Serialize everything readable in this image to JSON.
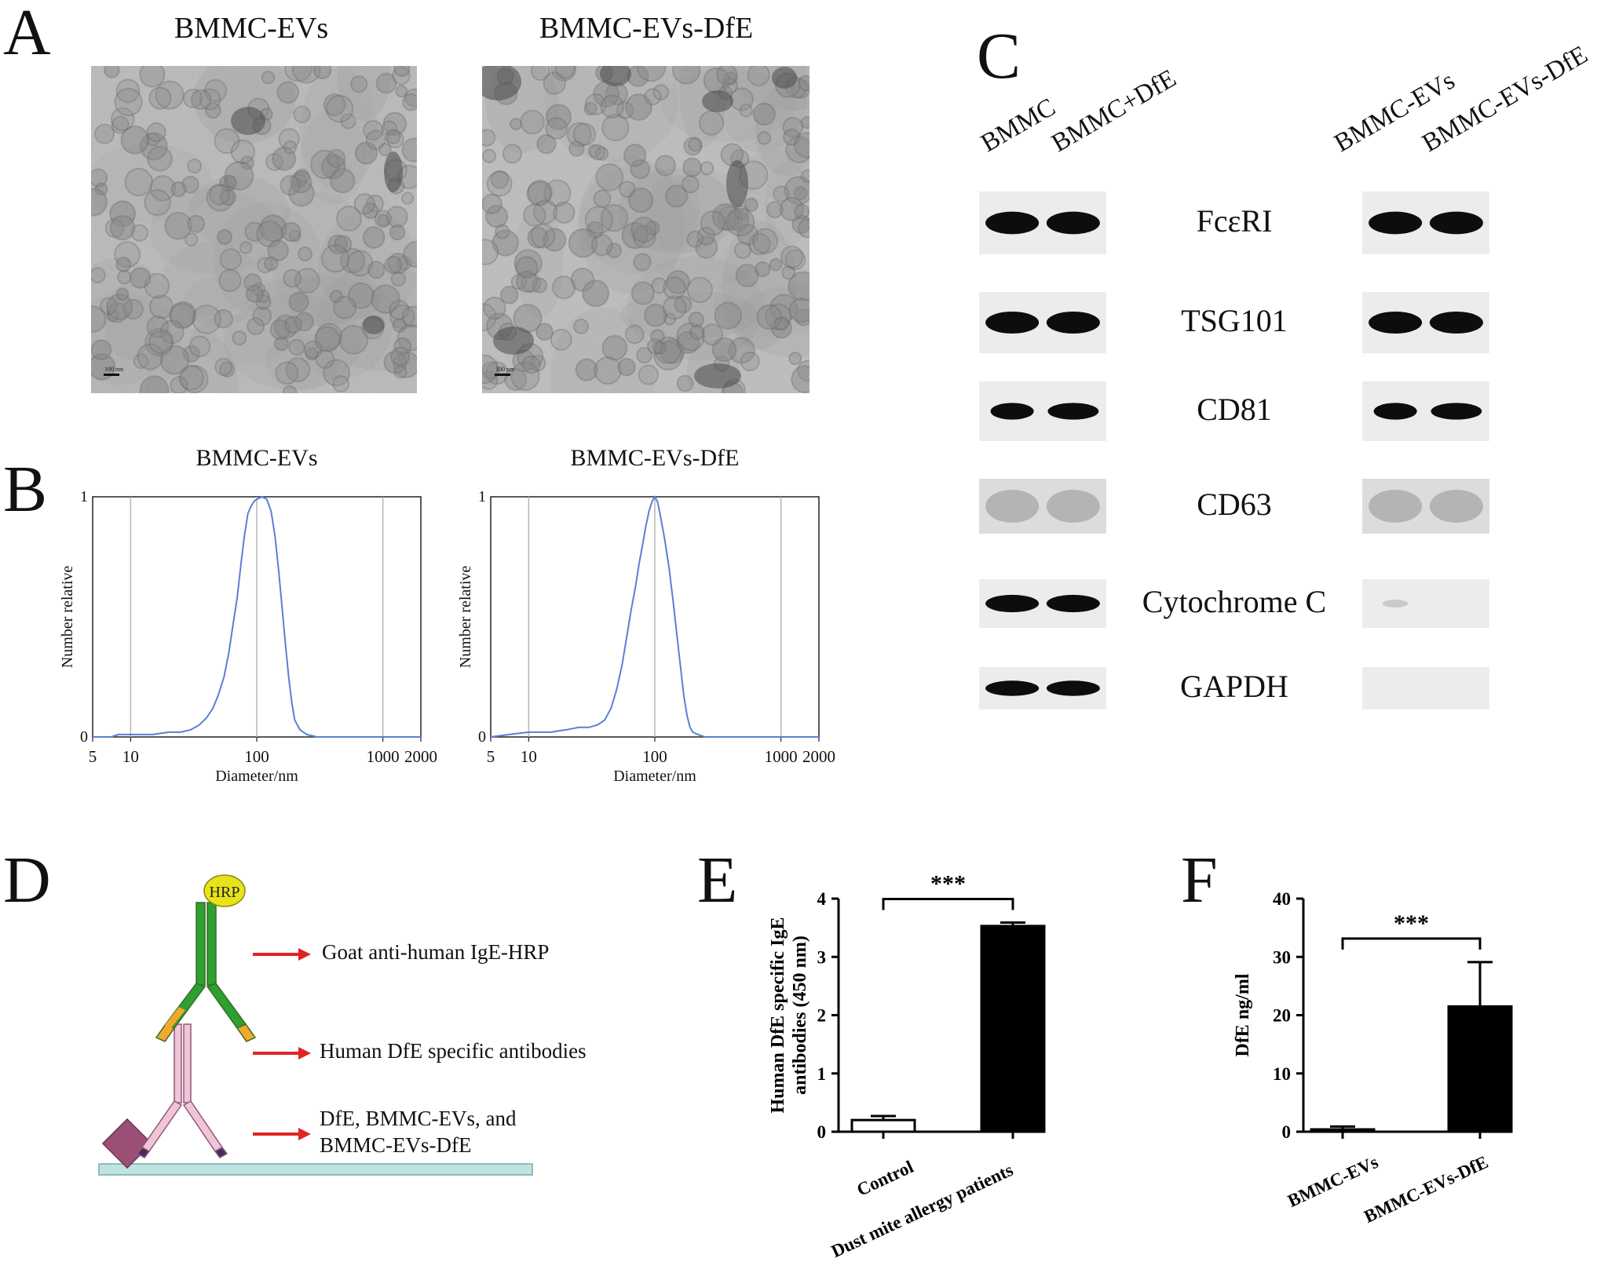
{
  "panels": {
    "A": "A",
    "B": "B",
    "C": "C",
    "D": "D",
    "E": "E",
    "F": "F"
  },
  "panel_a": {
    "titles": [
      "BMMC-EVs",
      "BMMC-EVs-DfE"
    ],
    "scale_bar_label": "100 nm"
  },
  "panel_c": {
    "lanes_left": [
      "BMMC",
      "BMMC+DfE"
    ],
    "lanes_right": [
      "BMMC-EVs",
      "BMMC-EVs-DfE"
    ],
    "proteins": [
      "FcεRI",
      "TSG101",
      "CD81",
      "CD63",
      "Cytochrome C",
      "GAPDH"
    ]
  },
  "panel_d": {
    "hrp_label": "HRP",
    "legend": [
      "Goat anti-human IgE-HRP",
      "Human DfE specific antibodies",
      "DfE, BMMC-EVs, and",
      "BMMC-EVs-DfE"
    ]
  },
  "chart_data": [
    {
      "type": "line",
      "title": "BMMC-EVs",
      "xlabel": "Diameter/nm",
      "ylabel": "Number relative",
      "xscale": "log",
      "xlim": [
        5,
        2000
      ],
      "ylim": [
        0,
        1
      ],
      "xticks": [
        "5",
        "10",
        "100",
        "1000",
        "2000"
      ],
      "yticks": [
        "0",
        "1"
      ],
      "grid": "vertical at 10, 100, 1000",
      "color": "#5b7fd6",
      "x": [
        5,
        7,
        8,
        10,
        12,
        15,
        20,
        25,
        30,
        35,
        40,
        45,
        50,
        55,
        60,
        65,
        70,
        75,
        80,
        85,
        90,
        95,
        100,
        110,
        120,
        130,
        140,
        150,
        160,
        170,
        180,
        190,
        200,
        220,
        250,
        300,
        400,
        2000
      ],
      "y": [
        0,
        0,
        0.01,
        0.01,
        0.01,
        0.01,
        0.02,
        0.02,
        0.03,
        0.05,
        0.08,
        0.12,
        0.18,
        0.25,
        0.35,
        0.47,
        0.58,
        0.72,
        0.84,
        0.93,
        0.96,
        0.98,
        0.99,
        1.0,
        0.99,
        0.94,
        0.83,
        0.68,
        0.52,
        0.37,
        0.24,
        0.14,
        0.07,
        0.03,
        0.01,
        0,
        0,
        0
      ]
    },
    {
      "type": "line",
      "title": "BMMC-EVs-DfE",
      "xlabel": "Diameter/nm",
      "ylabel": "Number relative",
      "xscale": "log",
      "xlim": [
        5,
        2000
      ],
      "ylim": [
        0,
        1
      ],
      "xticks": [
        "5",
        "10",
        "100",
        "1000",
        "2000"
      ],
      "yticks": [
        "0",
        "1"
      ],
      "grid": "vertical at 10, 100, 1000",
      "color": "#5b7fd6",
      "x": [
        5,
        7,
        10,
        15,
        20,
        25,
        30,
        35,
        40,
        45,
        50,
        55,
        60,
        65,
        70,
        75,
        80,
        85,
        90,
        95,
        100,
        105,
        110,
        120,
        130,
        140,
        150,
        160,
        170,
        180,
        190,
        200,
        220,
        250,
        300,
        2000
      ],
      "y": [
        0,
        0.01,
        0.02,
        0.02,
        0.03,
        0.04,
        0.04,
        0.05,
        0.07,
        0.12,
        0.2,
        0.3,
        0.42,
        0.53,
        0.62,
        0.72,
        0.8,
        0.88,
        0.94,
        0.98,
        1.0,
        0.98,
        0.93,
        0.82,
        0.7,
        0.56,
        0.42,
        0.29,
        0.17,
        0.09,
        0.04,
        0.02,
        0.01,
        0,
        0,
        0
      ]
    },
    {
      "type": "bar",
      "ylabel": "Human DfE specific IgE antibodies (450 nm)",
      "categories": [
        "Control",
        "Dust mite allergy patients"
      ],
      "values": [
        0.2,
        3.53
      ],
      "errors": [
        0.07,
        0.06
      ],
      "fills": [
        "#ffffff",
        "#000000"
      ],
      "ylim": [
        0,
        4
      ],
      "yticks": [
        "0",
        "1",
        "2",
        "3",
        "4"
      ],
      "significance": "***"
    },
    {
      "type": "bar",
      "ylabel": "DfE ng/ml",
      "categories": [
        "BMMC-EVs",
        "BMMC-EVs-DfE"
      ],
      "values": [
        0.4,
        21.5
      ],
      "errors": [
        0.5,
        7.6
      ],
      "fills": [
        "#000000",
        "#000000"
      ],
      "ylim": [
        0,
        40
      ],
      "yticks": [
        "0",
        "10",
        "20",
        "30",
        "40"
      ],
      "significance": "***"
    }
  ]
}
